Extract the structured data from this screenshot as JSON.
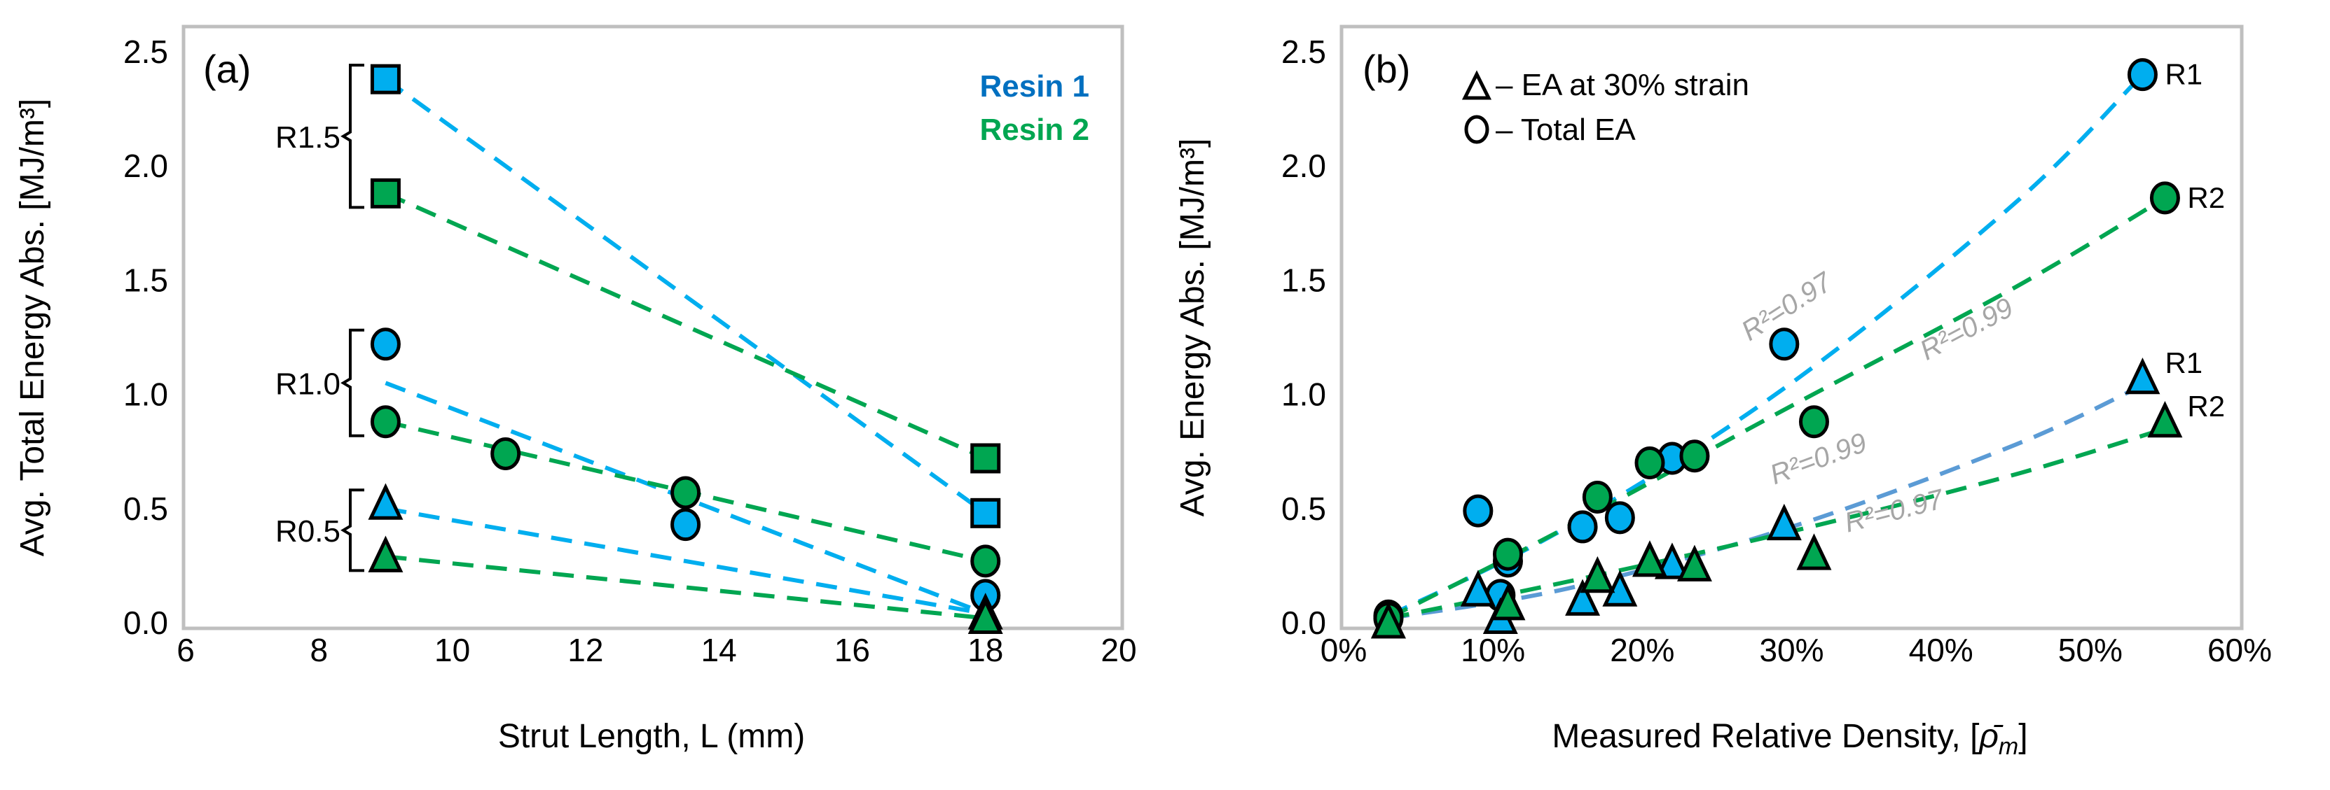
{
  "colors": {
    "resin1": "#00AEEF",
    "resin2": "#00A651",
    "fit_tri_r1": "#5B9BD5",
    "r2_label": "#A6A6A6",
    "frame": "#BFBFBF"
  },
  "chart_data": [
    {
      "type": "scatter",
      "panel_label": "(a)",
      "xlabel": "Strut Length, L (mm)",
      "ylabel": "Avg. Total Energy Abs. [MJ/m³]",
      "xlim": [
        6,
        20
      ],
      "ylim": [
        0,
        2.5
      ],
      "xticks": [
        6,
        8,
        10,
        12,
        14,
        16,
        18,
        20
      ],
      "yticks": [
        "0.0",
        "0.5",
        "1.0",
        "1.5",
        "2.0",
        "2.5"
      ],
      "legend": [
        {
          "label": "Resin 1",
          "series": "resin1"
        },
        {
          "label": "Resin 2",
          "series": "resin2"
        }
      ],
      "legend_position": "top-right",
      "groups": [
        {
          "label": "R1.5",
          "range": [
            1.88,
            2.38
          ]
        },
        {
          "label": "R1.0",
          "range": [
            0.88,
            1.22
          ]
        },
        {
          "label": "R0.5",
          "range": [
            0.29,
            0.52
          ]
        }
      ],
      "points": [
        {
          "resin": "resin1",
          "marker": "square",
          "x": 9,
          "y": 2.38
        },
        {
          "resin": "resin2",
          "marker": "square",
          "x": 9,
          "y": 1.88
        },
        {
          "resin": "resin1",
          "marker": "circle",
          "x": 9,
          "y": 1.22
        },
        {
          "resin": "resin2",
          "marker": "circle",
          "x": 9,
          "y": 0.88
        },
        {
          "resin": "resin1",
          "marker": "triangle",
          "x": 9,
          "y": 0.52
        },
        {
          "resin": "resin2",
          "marker": "triangle",
          "x": 9,
          "y": 0.29
        },
        {
          "resin": "resin2",
          "marker": "circle",
          "x": 10.8,
          "y": 0.74
        },
        {
          "resin": "resin2",
          "marker": "circle",
          "x": 13.5,
          "y": 0.57
        },
        {
          "resin": "resin1",
          "marker": "circle",
          "x": 13.5,
          "y": 0.43
        },
        {
          "resin": "resin2",
          "marker": "square",
          "x": 18,
          "y": 0.72
        },
        {
          "resin": "resin1",
          "marker": "square",
          "x": 18,
          "y": 0.48
        },
        {
          "resin": "resin2",
          "marker": "circle",
          "x": 18,
          "y": 0.27
        },
        {
          "resin": "resin1",
          "marker": "circle",
          "x": 18,
          "y": 0.12
        },
        {
          "resin": "resin1",
          "marker": "triangle",
          "x": 18,
          "y": 0.04
        },
        {
          "resin": "resin2",
          "marker": "triangle",
          "x": 18,
          "y": 0.02
        }
      ],
      "trend_lines": [
        {
          "resin": "resin1",
          "from": [
            9,
            2.38
          ],
          "to": [
            18,
            0.48
          ]
        },
        {
          "resin": "resin2",
          "from": [
            9,
            1.88
          ],
          "to": [
            18,
            0.72
          ]
        },
        {
          "resin": "resin1",
          "from": [
            9,
            1.05
          ],
          "to": [
            18,
            0.04
          ]
        },
        {
          "resin": "resin2",
          "from": [
            9,
            0.88
          ],
          "to": [
            18,
            0.27
          ]
        },
        {
          "resin": "resin1",
          "from": [
            9,
            0.5
          ],
          "to": [
            18,
            0.04
          ]
        },
        {
          "resin": "resin2",
          "from": [
            9,
            0.29
          ],
          "to": [
            18,
            0.02
          ]
        }
      ]
    },
    {
      "type": "scatter",
      "panel_label": "(b)",
      "xlabel": "Measured Relative Density, [",
      "xlabel_symbol": "ρ̄",
      "xlabel_sub": "m",
      "xlabel_end": "]",
      "ylabel": "Avg. Energy Abs. [MJ/m³]",
      "xlim": [
        0,
        60
      ],
      "ylim": [
        0,
        2.5
      ],
      "xticks": [
        "0%",
        "10%",
        "20%",
        "30%",
        "40%",
        "50%",
        "60%"
      ],
      "yticks": [
        "0.0",
        "0.5",
        "1.0",
        "1.5",
        "2.0",
        "2.5"
      ],
      "legend": [
        {
          "marker": "triangle",
          "label": "– EA at 30% strain"
        },
        {
          "marker": "circle",
          "label": "– Total EA"
        }
      ],
      "legend_position": "top-left",
      "series": [
        {
          "name": "R1 Total EA",
          "resin": "resin1",
          "marker": "circle",
          "end_label": "R1",
          "x": [
            3,
            9,
            10.5,
            11,
            16,
            18.5,
            22,
            29.5,
            53.5
          ],
          "y": [
            0.03,
            0.49,
            0.12,
            0.27,
            0.42,
            0.46,
            0.72,
            1.22,
            2.4
          ],
          "fit": {
            "r2": "R²=0.97",
            "x": [
              3,
              15,
              30,
              45,
              53.5
            ],
            "y": [
              0.03,
              0.42,
              1.05,
              1.84,
              2.4
            ]
          }
        },
        {
          "name": "R2 Total EA",
          "resin": "resin2",
          "marker": "circle",
          "end_label": "R2",
          "x": [
            3,
            11,
            17,
            20.5,
            23.5,
            31.5,
            55
          ],
          "y": [
            0.02,
            0.3,
            0.55,
            0.7,
            0.73,
            0.88,
            1.86
          ],
          "fit": {
            "r2": "R²=0.99",
            "x": [
              3,
              15,
              30,
              45,
              55
            ],
            "y": [
              0.02,
              0.42,
              0.95,
              1.47,
              1.86
            ]
          }
        },
        {
          "name": "R1 EA at 30% strain",
          "resin": "resin1",
          "marker": "triangle",
          "end_label": "R1",
          "x": [
            3,
            9,
            10.5,
            16,
            18.5,
            22,
            29.5,
            53.5
          ],
          "y": [
            0.0,
            0.14,
            0.02,
            0.1,
            0.14,
            0.26,
            0.43,
            1.07
          ],
          "fit": {
            "r2": "R²=0.99",
            "x": [
              3,
              15,
              30,
              45,
              53.5
            ],
            "y": [
              0.02,
              0.15,
              0.42,
              0.78,
              1.04
            ]
          }
        },
        {
          "name": "R2 EA at 30% strain",
          "resin": "resin2",
          "marker": "triangle",
          "end_label": "R2",
          "x": [
            3,
            11,
            17,
            20.5,
            23.5,
            31.5,
            55
          ],
          "y": [
            0.0,
            0.08,
            0.2,
            0.27,
            0.25,
            0.3,
            0.88
          ],
          "fit": {
            "r2": "R²=0.97",
            "x": [
              3,
              15,
              30,
              45,
              55
            ],
            "y": [
              0.02,
              0.18,
              0.4,
              0.65,
              0.85
            ]
          }
        }
      ]
    }
  ]
}
